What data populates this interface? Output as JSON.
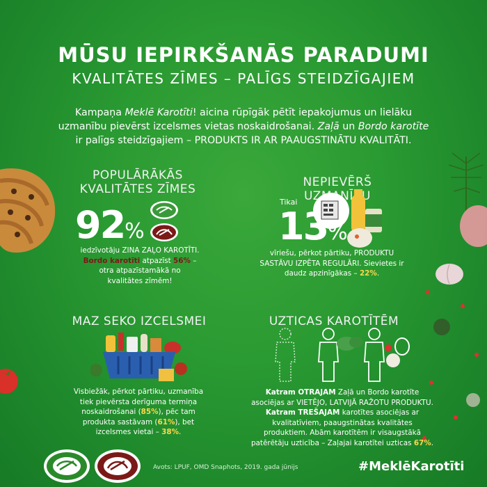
{
  "header": {
    "title": "MŪSU IEPIRKŠANĀS PARADUMI",
    "subtitle": "KVALITĀTES ZĪMES – PALĪGS STEIDZĪGAJIEM"
  },
  "intro": {
    "line1_a": "Kampaņa ",
    "line1_b": "Meklē Karotīti",
    "line1_c": "! aicina rūpīgāk pētīt iepakojumus un lielāku",
    "line2_a": "uzmanību pievērst izcelsmes vietas noskaidrošanai. ",
    "line2_b": "Zaļā",
    "line2_c": " un ",
    "line2_d": "Bordo karotīte",
    "line3": "ir palīgs steidzīgajiem – PRODUKTS IR AR PAAUGSTINĀTU KVALITĀTI."
  },
  "section1": {
    "heading_1": "POPULĀRĀKĀS",
    "heading_2": "KVALITĀTES ZĪMES",
    "big_number": "92",
    "pct": "%",
    "text_1": "iedzīvotāju ZINA ZAĻO KAROTĪTI.",
    "text_2_bordo": "Bordo karotīti",
    "text_2_rest": " atpazīst ",
    "text_2_hl": "56%",
    "text_2_end": " –",
    "text_3": "otra atpazīstamākā no",
    "text_4": "kvalitātes zīmēm!"
  },
  "section2": {
    "heading": "NEPIEVĒRŠ UZMANĪBU",
    "tikai": "Tikai",
    "big_number": "13",
    "pct": "%",
    "text_1": "vīriešu, pērkot pārtiku, PRODUKTU",
    "text_2": "SASTĀVU IZPĒTA REGULĀRI. Sievietes ir",
    "text_3_a": "daudz apzinīgākas – ",
    "text_3_hl": "22%",
    "text_3_end": "."
  },
  "section3": {
    "heading": "MAZ SEKO IZCELSMEI",
    "text_1": "Visbiežāk, pērkot pārtiku, uzmanība",
    "text_2": "tiek pievērsta derīguma termiņa",
    "text_3_a": "noskaidrošanai (",
    "text_3_hl": "85%",
    "text_3_b": "), pēc tam",
    "text_4_a": "produkta sastāvam (",
    "text_4_hl": "61%",
    "text_4_b": "), bet",
    "text_5_a": "izcelsmes vietai – ",
    "text_5_hl": "38%",
    "text_5_b": "."
  },
  "section4": {
    "heading": "UZTICAS KAROTĪTĒM",
    "text_1_b": "Katram OTRAJAM",
    "text_1_rest": " Zaļā un Bordo karotīte",
    "text_2": "asociējas ar VIETĒJO, LATVIJĀ RAŽOTU PRODUKTU.",
    "text_3_b": "Katram TREŠAJAM",
    "text_3_rest": " karotītes asociējas ar",
    "text_4": "kvalitatīviem, paaugstinātas kvalitātes",
    "text_5": "produktiem. Abām karotītēm ir  visaugstākā",
    "text_6_a": "patērētāju uzticība – Zaļajai karotītei uzticas ",
    "text_6_hl": "67%",
    "text_6_b": "."
  },
  "footer": {
    "source": "Avots: LPUF,  OMD Snaphots, 2019. gada jūnijs",
    "hashtag": "#MeklēKarotīti"
  },
  "colors": {
    "bg_green": "#2a9a32",
    "bordo": "#7a1a18",
    "highlight": "#ffd84d"
  }
}
